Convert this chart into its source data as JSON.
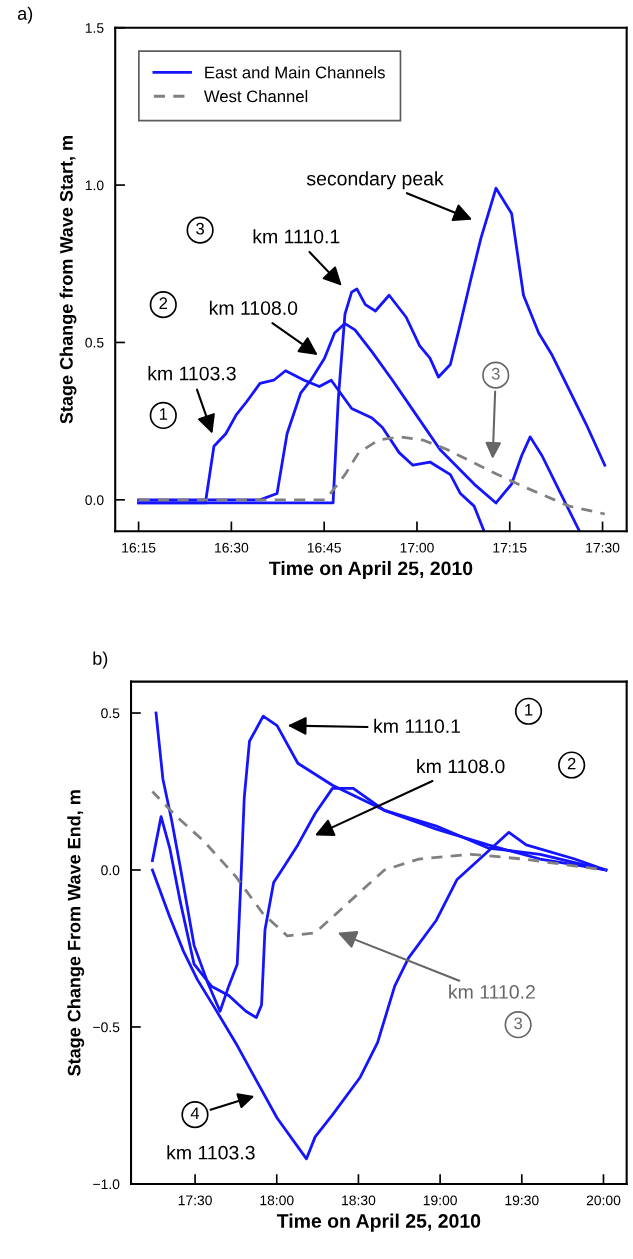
{
  "chart_data": [
    {
      "type": "line",
      "xlabel": "Time on April 25, 2010",
      "ylabel": "Stage Change from Wave Start, m",
      "xlim": [
        16.187,
        17.565
      ],
      "ylim": [
        -0.1,
        1.5
      ],
      "xticks": [
        {
          "value": 16.25,
          "label": "16:15"
        },
        {
          "value": 16.5,
          "label": "16:30"
        },
        {
          "value": 16.75,
          "label": "16:45"
        },
        {
          "value": 17.0,
          "label": "17:00"
        },
        {
          "value": 17.25,
          "label": "17:15"
        },
        {
          "value": 17.5,
          "label": "17:30"
        }
      ],
      "yticks": [
        {
          "value": 0,
          "label": "0.0"
        },
        {
          "value": 0.5,
          "label": "0.5"
        },
        {
          "value": 1.0,
          "label": "1.0"
        },
        {
          "value": 1.5,
          "label": "1.5"
        }
      ],
      "grid": false,
      "legend": "top left",
      "series": [
        {
          "name": "East and Main Channels",
          "color": "#1414ff",
          "line_style": "solid",
          "x": [
            16.25,
            16.43,
            16.453,
            16.485,
            16.513,
            16.54,
            16.577,
            16.614,
            16.646,
            16.696,
            16.737,
            16.769,
            16.824,
            16.879,
            16.907,
            16.952,
            16.989,
            17.035,
            17.09,
            17.117,
            17.154,
            17.181
          ],
          "values": [
            -0.01,
            -0.01,
            0.17,
            0.21,
            0.27,
            0.31,
            0.37,
            0.38,
            0.41,
            0.38,
            0.36,
            0.38,
            0.29,
            0.26,
            0.23,
            0.15,
            0.11,
            0.12,
            0.08,
            0.02,
            -0.02,
            -0.1
          ]
        },
        {
          "color": "#1414ff",
          "line_style": "solid",
          "x": [
            16.25,
            16.577,
            16.623,
            16.65,
            16.687,
            16.714,
            16.751,
            16.778,
            16.806,
            16.833,
            16.879,
            16.934,
            16.998,
            17.062,
            17.154,
            17.213,
            17.255,
            17.282,
            17.305,
            17.337,
            17.383,
            17.438
          ],
          "values": [
            0.0,
            0.0,
            0.02,
            0.21,
            0.34,
            0.38,
            0.45,
            0.53,
            0.56,
            0.54,
            0.47,
            0.38,
            0.27,
            0.16,
            0.05,
            -0.01,
            0.05,
            0.14,
            0.2,
            0.14,
            0.03,
            -0.1
          ]
        },
        {
          "color": "#1414ff",
          "line_style": "solid",
          "x": [
            16.25,
            16.774,
            16.788,
            16.806,
            16.824,
            16.838,
            16.861,
            16.888,
            16.925,
            16.971,
            17.007,
            17.035,
            17.058,
            17.09,
            17.117,
            17.145,
            17.172,
            17.213,
            17.255,
            17.287,
            17.328,
            17.364,
            17.41,
            17.456,
            17.506
          ],
          "values": [
            -0.01,
            -0.01,
            0.32,
            0.59,
            0.66,
            0.67,
            0.62,
            0.6,
            0.65,
            0.58,
            0.49,
            0.45,
            0.39,
            0.43,
            0.56,
            0.7,
            0.83,
            0.99,
            0.91,
            0.65,
            0.53,
            0.46,
            0.35,
            0.24,
            0.11
          ]
        },
        {
          "name": "West Channel",
          "color": "#808080",
          "line_style": "dashed",
          "x": [
            16.25,
            16.754,
            16.806,
            16.843,
            16.897,
            16.952,
            17.016,
            17.081,
            17.2,
            17.291,
            17.41,
            17.506
          ],
          "values": [
            0.0,
            0.0,
            0.08,
            0.15,
            0.19,
            0.2,
            0.19,
            0.16,
            0.09,
            0.04,
            -0.02,
            -0.045
          ]
        }
      ],
      "annotations": [
        "a)",
        "km 1103.3",
        "1",
        "km 1108.0",
        "2",
        "km 1110.1",
        "3",
        "secondary peak",
        "3"
      ]
    },
    {
      "type": "line",
      "xlabel": "Time on April 25, 2010",
      "ylabel": "Stage Change From Wave End, m",
      "xlim": [
        17.108,
        20.142
      ],
      "ylim": [
        -1.0,
        0.6
      ],
      "xticks": [
        {
          "value": 17.5,
          "label": "17:30"
        },
        {
          "value": 18.0,
          "label": "18:00"
        },
        {
          "value": 18.5,
          "label": "18:30"
        },
        {
          "value": 19.0,
          "label": "19:00"
        },
        {
          "value": 19.5,
          "label": "19:30"
        },
        {
          "value": 20.0,
          "label": "20:00"
        }
      ],
      "yticks": [
        {
          "value": -1.0,
          "label": "−1.0"
        },
        {
          "value": -0.5,
          "label": "−0.5"
        },
        {
          "value": 0,
          "label": "0.0"
        },
        {
          "value": 0.5,
          "label": "0.5"
        }
      ],
      "grid": false,
      "series": [
        {
          "color": "#1414ff",
          "line_style": "solid",
          "x": [
            17.261,
            17.303,
            17.356,
            17.409,
            17.494,
            17.578,
            17.653,
            17.706,
            17.758,
            17.78,
            17.801,
            17.833,
            17.917,
            18.002,
            18.129,
            18.341,
            18.659,
            18.977,
            19.294,
            19.612,
            20.015
          ],
          "values": [
            0.5,
            0.29,
            0.16,
            0.01,
            -0.24,
            -0.36,
            -0.45,
            -0.37,
            -0.3,
            -0.04,
            0.23,
            0.41,
            0.49,
            0.46,
            0.34,
            0.27,
            0.19,
            0.13,
            0.08,
            0.035,
            0.0
          ]
        },
        {
          "color": "#1414ff",
          "line_style": "solid",
          "x": [
            17.239,
            17.292,
            17.345,
            17.409,
            17.494,
            17.6,
            17.706,
            17.811,
            17.875,
            17.907,
            17.928,
            17.981,
            18.044,
            18.129,
            18.235,
            18.341,
            18.468,
            18.659,
            18.977,
            19.294,
            19.612,
            20.015
          ],
          "values": [
            0.03,
            0.17,
            0.07,
            -0.1,
            -0.3,
            -0.37,
            -0.4,
            -0.45,
            -0.47,
            -0.43,
            -0.19,
            -0.04,
            0.01,
            0.08,
            0.18,
            0.26,
            0.26,
            0.19,
            0.14,
            0.07,
            0.05,
            0.0
          ]
        },
        {
          "color": "#1414ff",
          "line_style": "solid",
          "x": [
            17.239,
            17.345,
            17.43,
            17.515,
            17.621,
            17.748,
            17.875,
            18.002,
            18.182,
            18.235,
            18.341,
            18.511,
            18.617,
            18.722,
            18.807,
            18.977,
            19.104,
            19.294,
            19.421,
            19.527,
            19.824,
            20.015
          ],
          "values": [
            0.0,
            -0.15,
            -0.26,
            -0.35,
            -0.44,
            -0.55,
            -0.67,
            -0.79,
            -0.92,
            -0.85,
            -0.78,
            -0.66,
            -0.55,
            -0.37,
            -0.28,
            -0.16,
            -0.03,
            0.06,
            0.12,
            0.08,
            0.035,
            0.0
          ]
        },
        {
          "color": "#808080",
          "line_style": "dashed",
          "x": [
            17.239,
            17.388,
            17.557,
            17.748,
            17.917,
            18.065,
            18.235,
            18.447,
            18.659,
            18.871,
            19.188,
            19.506,
            20.015
          ],
          "values": [
            0.25,
            0.17,
            0.09,
            -0.02,
            -0.14,
            -0.21,
            -0.2,
            -0.1,
            0.0,
            0.035,
            0.05,
            0.035,
            0.0
          ]
        }
      ],
      "annotations": [
        "b)",
        "km 1110.1",
        "1",
        "km 1108.0",
        "2",
        "km 1110.2",
        "3",
        "km 1103.3",
        "4"
      ]
    }
  ]
}
